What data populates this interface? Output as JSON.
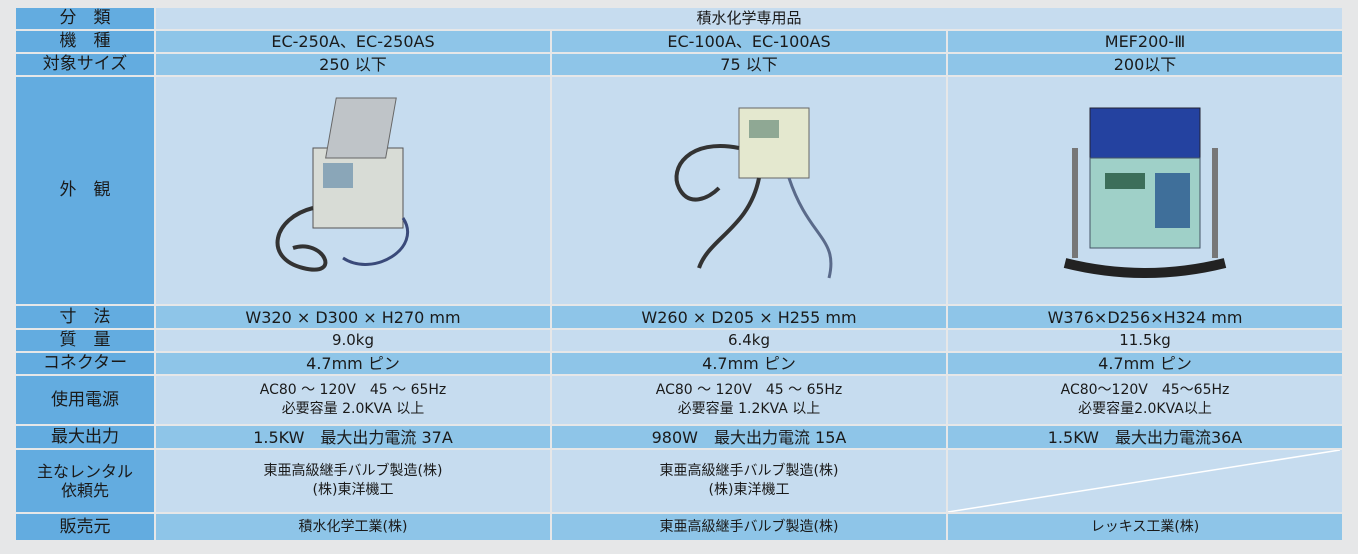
{
  "table": {
    "rows": [
      [
        "分　類",
        "積水化学専用品"
      ],
      [
        "機　種",
        "EC-250A、EC-250AS",
        "EC-100A、EC-100AS",
        "MEF200-Ⅲ"
      ],
      [
        "対象サイズ",
        "250 以下",
        "75 以下",
        "200以下"
      ],
      [
        "外　観"
      ],
      [
        "寸　法",
        "W320 × D300 × H270 mm",
        "W260 × D205 × H255 mm",
        "W376×D256×H324 mm"
      ],
      [
        "質　量",
        "9.0kg",
        "6.4kg",
        "11.5kg"
      ],
      [
        "コネクター",
        "4.7mm ピン",
        "4.7mm ピン",
        "4.7mm ピン"
      ],
      [
        "使用電源",
        "AC80 ～ 120V　45 ～ 65Hz\n必要容量 2.0KVA 以上",
        "AC80 ～ 120V　45 ～ 65Hz\n必要容量 1.2KVA 以上",
        "AC80～120V　45～65Hz\n必要容量2.0KVA以上"
      ],
      [
        "最大出力",
        "1.5KW　最大出力電流 37A",
        "980W　最大出力電流 15A",
        "1.5KW　最大出力電流36A"
      ],
      [
        "主なレンタル\n依頼先",
        "東亜高級継手バルブ製造(株)\n(株)東洋機工",
        "東亜高級継手バルブ製造(株)\n(株)東洋機工"
      ],
      [
        "販売元",
        "積水化学工業(株)",
        "東亜高級継手バルブ製造(株)",
        "レッキス工業(株)"
      ]
    ]
  }
}
